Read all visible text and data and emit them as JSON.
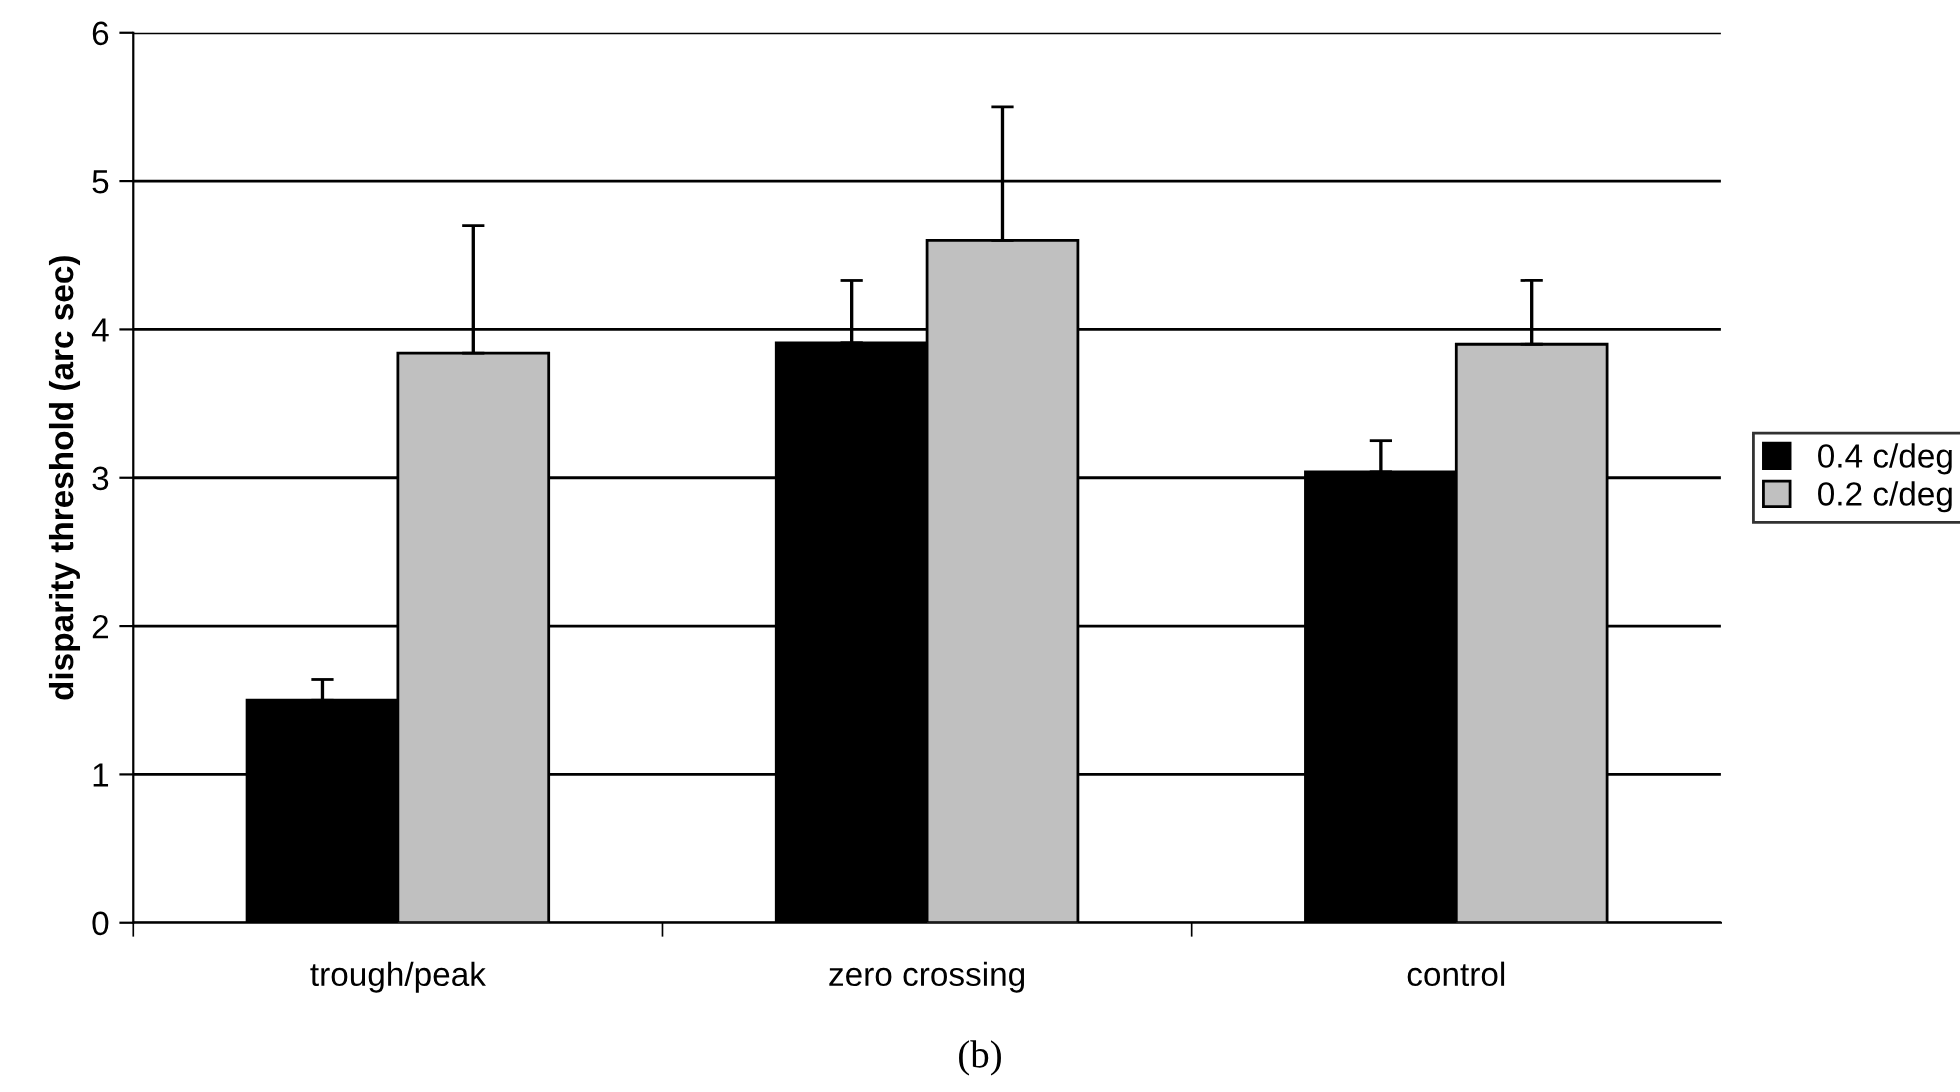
{
  "chart_data": {
    "type": "bar",
    "ylabel": "disparity threshold (arc sec)",
    "categories": [
      "trough/peak",
      "zero crossing",
      "control"
    ],
    "series": [
      {
        "name": "0.4 c/deg",
        "color": "#000000",
        "values": [
          1.5,
          3.91,
          3.04
        ],
        "errors": [
          [
            1.5,
            1.64
          ],
          [
            3.91,
            4.33
          ],
          [
            3.04,
            3.25
          ]
        ]
      },
      {
        "name": "0.2 c/deg",
        "color": "#c0c0c0",
        "values": [
          3.84,
          4.6,
          3.9
        ],
        "errors": [
          [
            3.84,
            4.7
          ],
          [
            4.6,
            5.5
          ],
          [
            3.9,
            4.33
          ]
        ]
      }
    ],
    "ylim": [
      0,
      6
    ],
    "yticks": [
      0,
      1,
      2,
      3,
      4,
      5,
      6
    ],
    "grid": "y",
    "legend": "right",
    "annotations": [
      "(b)"
    ]
  }
}
